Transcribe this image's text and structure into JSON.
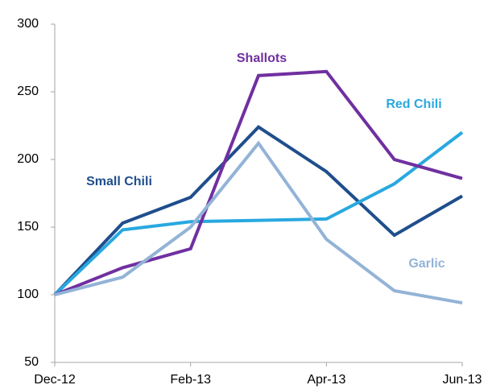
{
  "chart_data": {
    "type": "line",
    "categories": [
      "Dec-12",
      null,
      "Feb-13",
      null,
      "Apr-13",
      null,
      "Jun-13"
    ],
    "ylim": [
      50,
      300
    ],
    "yticks": [
      50,
      100,
      150,
      200,
      250,
      300
    ],
    "grid": false,
    "series": [
      {
        "name": "Small Chili",
        "color": "#1f4e8c",
        "values": [
          100,
          153,
          172,
          224,
          191,
          144,
          173
        ]
      },
      {
        "name": "Red Chili",
        "color": "#29a8e0",
        "values": [
          100,
          148,
          154,
          155,
          156,
          182,
          220
        ]
      },
      {
        "name": "Shallots",
        "color": "#7030a0",
        "values": [
          100,
          120,
          134,
          262,
          265,
          200,
          186
        ]
      },
      {
        "name": "Garlic",
        "color": "#93b3d7",
        "values": [
          100,
          113,
          150,
          212,
          141,
          103,
          94
        ]
      }
    ]
  }
}
